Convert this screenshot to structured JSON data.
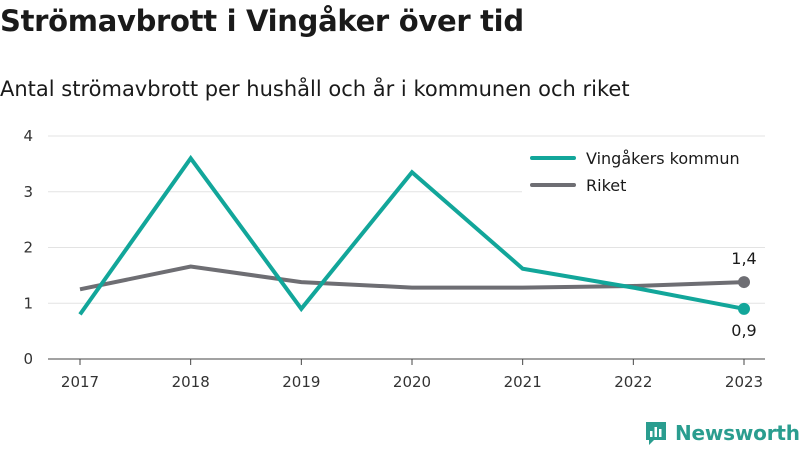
{
  "title": "Strömavbrott i Vingåker över tid",
  "subtitle": "Antal strömavbrott per hushåll och år i kommunen och riket",
  "brand": {
    "name": "Newsworthy",
    "icon": "newsworthy-logo-icon",
    "color": "#2a9d8f"
  },
  "chart_data": {
    "type": "line",
    "title": "Strömavbrott i Vingåker över tid",
    "subtitle": "Antal strömavbrott per hushåll och år i kommunen och riket",
    "xlabel": "",
    "ylabel": "",
    "categories": [
      "2017",
      "2018",
      "2019",
      "2020",
      "2021",
      "2022",
      "2023"
    ],
    "ylim": [
      0,
      4
    ],
    "yticks": [
      "0",
      "1",
      "2",
      "3",
      "4"
    ],
    "grid": true,
    "legend_placement": "top-right",
    "series": [
      {
        "name": "Vingåkers kommun",
        "color": "#12a69a",
        "values": [
          0.8,
          3.6,
          0.9,
          3.35,
          1.62,
          1.28,
          0.9
        ],
        "end_label": "0,9"
      },
      {
        "name": "Riket",
        "color": "#6e6e73",
        "values": [
          1.25,
          1.66,
          1.38,
          1.28,
          1.28,
          1.31,
          1.38
        ],
        "end_label": "1,4"
      }
    ]
  }
}
